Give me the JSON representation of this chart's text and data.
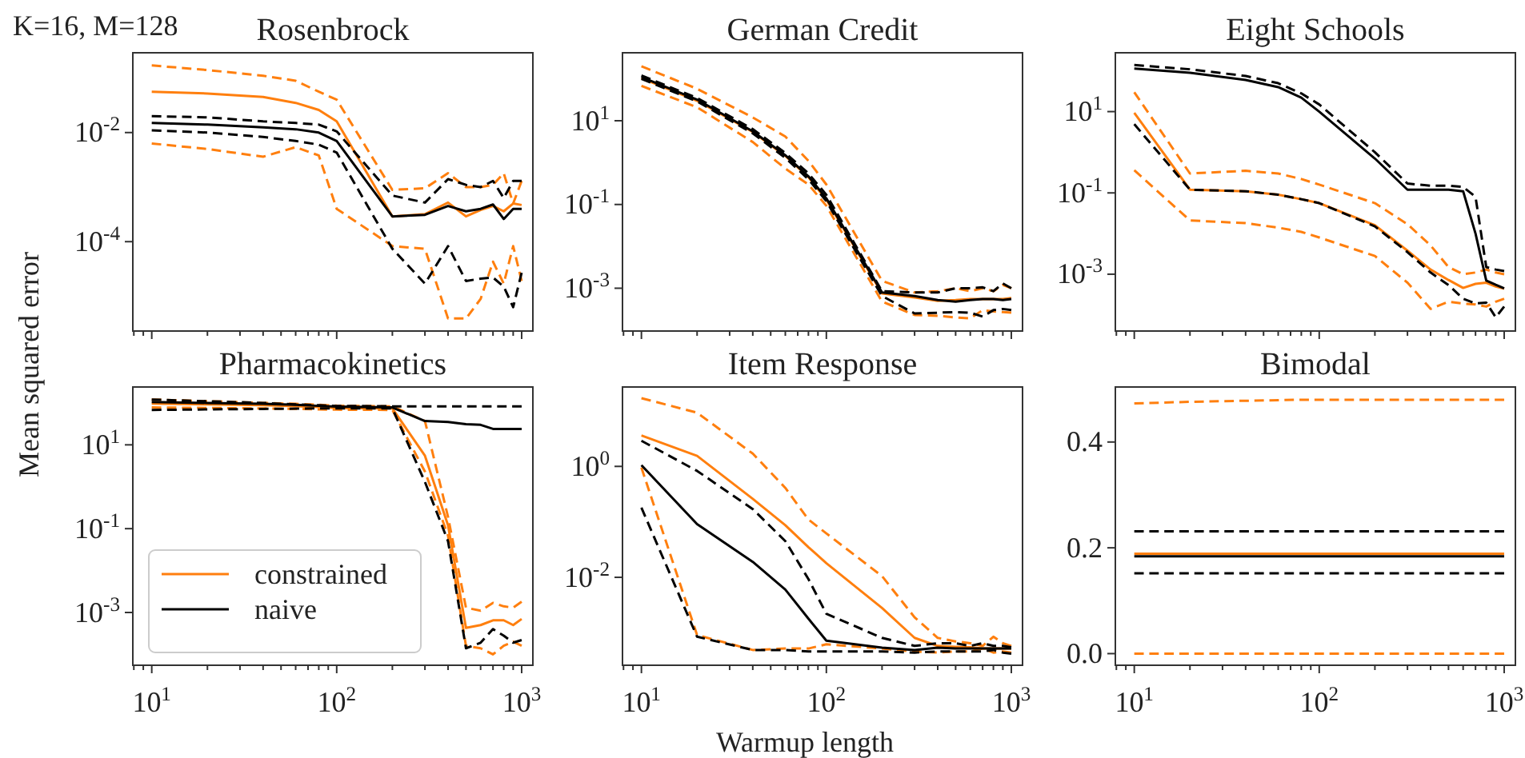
{
  "chart_data": [
    {
      "type": "line",
      "title": "Rosenbrock",
      "log": "xy",
      "tick_labels": "y",
      "ylabel": "Mean squared error",
      "annotations": [
        "K=16, M=128"
      ],
      "x": [
        10,
        20,
        40,
        60,
        80,
        100,
        200,
        300,
        400,
        500,
        600,
        700,
        800,
        900,
        1000
      ],
      "xlim": [
        7.9,
        1150
      ],
      "ylim": [
        2.3e-06,
        0.29
      ],
      "xticks": [
        {
          "value": 8,
          "label": null
        },
        {
          "value": 9,
          "label": null
        },
        {
          "value": 10,
          "label": null
        },
        {
          "value": 20,
          "label": null
        },
        {
          "value": 30,
          "label": null
        },
        {
          "value": 40,
          "label": null
        },
        {
          "value": 50,
          "label": null
        },
        {
          "value": 60,
          "label": null
        },
        {
          "value": 70,
          "label": null
        },
        {
          "value": 80,
          "label": null
        },
        {
          "value": 90,
          "label": null
        },
        {
          "value": 100,
          "label": null
        },
        {
          "value": 200,
          "label": null
        },
        {
          "value": 300,
          "label": null
        },
        {
          "value": 400,
          "label": null
        },
        {
          "value": 500,
          "label": null
        },
        {
          "value": 600,
          "label": null
        },
        {
          "value": 700,
          "label": null
        },
        {
          "value": 800,
          "label": null
        },
        {
          "value": 900,
          "label": null
        },
        {
          "value": 1000,
          "label": null
        }
      ],
      "yticks": [
        {
          "value": 0.01,
          "label": "10$^{-2}$"
        },
        {
          "value": 0.0001,
          "label": "10$^{-4}$"
        }
      ],
      "series": [
        {
          "color": "#ff7f0e",
          "line_style": "dashed",
          "values": [
            0.17,
            0.14,
            0.11,
            0.089,
            0.056,
            0.04,
            0.00089,
            0.00095,
            0.0018,
            0.001,
            0.001,
            0.0011,
            0.0018,
            0.0005,
            0.0013
          ]
        },
        {
          "color": "#ff7f0e",
          "line_style": "solid",
          "values": [
            0.056,
            0.052,
            0.045,
            0.035,
            0.026,
            0.016,
            0.00029,
            0.00032,
            0.00052,
            0.00029,
            0.00038,
            0.00045,
            0.00036,
            0.0005,
            0.00047
          ]
        },
        {
          "color": "#ff7f0e",
          "line_style": "dashed",
          "values": [
            0.0063,
            0.005,
            0.0036,
            0.0054,
            0.0038,
            0.0004,
            8.3e-05,
            7.4e-05,
            3.9e-06,
            3.9e-06,
            8.9e-06,
            4.3e-05,
            1.7e-05,
            8.3e-05,
            1.9e-05
          ]
        },
        {
          "color": "#000000",
          "line_style": "dashed",
          "values": [
            0.02,
            0.019,
            0.016,
            0.015,
            0.014,
            0.0105,
            0.0007,
            0.00052,
            0.0014,
            0.0011,
            0.001,
            0.0013,
            0.00063,
            0.0013,
            0.0013
          ]
        },
        {
          "color": "#000000",
          "line_style": "solid",
          "values": [
            0.015,
            0.014,
            0.0125,
            0.0115,
            0.01,
            0.007,
            0.00029,
            0.00031,
            0.00045,
            0.00036,
            0.0004,
            0.00048,
            0.00026,
            0.0004,
            0.0004
          ]
        },
        {
          "color": "#000000",
          "line_style": "dashed",
          "values": [
            0.011,
            0.01,
            0.0083,
            0.007,
            0.006,
            0.0043,
            7.4e-05,
            1.7e-05,
            8.3e-05,
            1.9e-05,
            2.1e-05,
            2.2e-05,
            1.5e-05,
            6.3e-06,
            2.7e-05
          ]
        }
      ]
    },
    {
      "type": "line",
      "title": "German Credit",
      "log": "xy",
      "tick_labels": "y",
      "x": [
        10,
        20,
        40,
        60,
        80,
        100,
        200,
        300,
        400,
        500,
        600,
        700,
        800,
        900,
        1000
      ],
      "xlim": [
        7.9,
        1150
      ],
      "ylim": [
        9.5e-05,
        420
      ],
      "xticks": [
        {
          "value": 8,
          "label": null
        },
        {
          "value": 9,
          "label": null
        },
        {
          "value": 10,
          "label": null
        },
        {
          "value": 20,
          "label": null
        },
        {
          "value": 30,
          "label": null
        },
        {
          "value": 40,
          "label": null
        },
        {
          "value": 50,
          "label": null
        },
        {
          "value": 60,
          "label": null
        },
        {
          "value": 70,
          "label": null
        },
        {
          "value": 80,
          "label": null
        },
        {
          "value": 90,
          "label": null
        },
        {
          "value": 100,
          "label": null
        },
        {
          "value": 200,
          "label": null
        },
        {
          "value": 300,
          "label": null
        },
        {
          "value": 400,
          "label": null
        },
        {
          "value": 500,
          "label": null
        },
        {
          "value": 600,
          "label": null
        },
        {
          "value": 700,
          "label": null
        },
        {
          "value": 800,
          "label": null
        },
        {
          "value": 900,
          "label": null
        },
        {
          "value": 1000,
          "label": null
        }
      ],
      "yticks": [
        {
          "value": 10,
          "label": "10$^{1}$"
        },
        {
          "value": 0.1,
          "label": "10$^{-1}$"
        },
        {
          "value": 0.001,
          "label": "10$^{-3}$"
        }
      ],
      "series": [
        {
          "color": "#ff7f0e",
          "line_style": "dashed",
          "values": [
            200,
            58,
            12,
            4.2,
            1.1,
            0.3,
            0.0015,
            0.00079,
            0.00085,
            0.001,
            0.00085,
            0.001,
            0.00085,
            0.0012,
            0.001
          ]
        },
        {
          "color": "#ff7f0e",
          "line_style": "solid",
          "values": [
            105,
            30,
            5.4,
            1.45,
            0.45,
            0.13,
            0.00075,
            0.0006,
            0.0005,
            0.00052,
            0.00055,
            0.00055,
            0.00055,
            0.00055,
            0.00058
          ]
        },
        {
          "color": "#ff7f0e",
          "line_style": "dashed",
          "values": [
            68,
            21,
            3.1,
            0.72,
            0.3,
            0.093,
            0.00048,
            0.00023,
            0.00022,
            0.0002,
            0.00019,
            0.0003,
            0.00028,
            0.00027,
            0.00026
          ]
        },
        {
          "color": "#000000",
          "line_style": "dashed",
          "values": [
            120,
            35,
            6.3,
            1.7,
            0.55,
            0.17,
            0.00085,
            0.00079,
            0.00079,
            0.001,
            0.001,
            0.00105,
            0.00085,
            0.0013,
            0.001
          ]
        },
        {
          "color": "#000000",
          "line_style": "solid",
          "values": [
            110,
            32,
            5.6,
            1.5,
            0.47,
            0.14,
            0.00079,
            0.00065,
            0.00052,
            0.00048,
            0.00052,
            0.00055,
            0.00055,
            0.00052,
            0.00055
          ]
        },
        {
          "color": "#000000",
          "line_style": "dashed",
          "values": [
            100,
            29,
            5,
            1.3,
            0.4,
            0.12,
            0.00065,
            0.00025,
            0.00026,
            0.00027,
            0.00026,
            0.00021,
            0.0003,
            0.00032,
            0.0003
          ]
        }
      ]
    },
    {
      "type": "line",
      "title": "Eight Schools",
      "log": "xy",
      "tick_labels": "y",
      "x": [
        10,
        20,
        40,
        60,
        80,
        100,
        200,
        300,
        400,
        500,
        600,
        700,
        800,
        900,
        1000
      ],
      "xlim": [
        7.9,
        1150
      ],
      "ylim": [
        4e-05,
        280
      ],
      "xticks": [
        {
          "value": 8,
          "label": null
        },
        {
          "value": 9,
          "label": null
        },
        {
          "value": 10,
          "label": null
        },
        {
          "value": 20,
          "label": null
        },
        {
          "value": 30,
          "label": null
        },
        {
          "value": 40,
          "label": null
        },
        {
          "value": 50,
          "label": null
        },
        {
          "value": 60,
          "label": null
        },
        {
          "value": 70,
          "label": null
        },
        {
          "value": 80,
          "label": null
        },
        {
          "value": 90,
          "label": null
        },
        {
          "value": 100,
          "label": null
        },
        {
          "value": 200,
          "label": null
        },
        {
          "value": 300,
          "label": null
        },
        {
          "value": 400,
          "label": null
        },
        {
          "value": 500,
          "label": null
        },
        {
          "value": 600,
          "label": null
        },
        {
          "value": 700,
          "label": null
        },
        {
          "value": 800,
          "label": null
        },
        {
          "value": 900,
          "label": null
        },
        {
          "value": 1000,
          "label": null
        }
      ],
      "yticks": [
        {
          "value": 10,
          "label": "10$^{1}$"
        },
        {
          "value": 0.1,
          "label": "10$^{-1}$"
        },
        {
          "value": 0.001,
          "label": "10$^{-3}$"
        }
      ],
      "series": [
        {
          "color": "#ff7f0e",
          "line_style": "dashed",
          "values": [
            30,
            0.3,
            0.35,
            0.3,
            0.22,
            0.16,
            0.056,
            0.017,
            0.0051,
            0.0015,
            0.001,
            0.0011,
            0.0013,
            0.0011,
            0.001
          ]
        },
        {
          "color": "#ff7f0e",
          "line_style": "solid",
          "values": [
            9.3,
            0.12,
            0.11,
            0.09,
            0.07,
            0.056,
            0.016,
            0.0038,
            0.0013,
            0.00072,
            0.00046,
            0.00058,
            0.00062,
            0.0005,
            0.00044
          ]
        },
        {
          "color": "#ff7f0e",
          "line_style": "dashed",
          "values": [
            0.36,
            0.021,
            0.018,
            0.014,
            0.011,
            0.008,
            0.0028,
            0.00062,
            0.00014,
            0.00021,
            0.00019,
            0.00018,
            0.00016,
            0.00021,
            0.00025
          ]
        },
        {
          "color": "#000000",
          "line_style": "dashed",
          "values": [
            140,
            110,
            75,
            50,
            28,
            15,
            1,
            0.17,
            0.15,
            0.15,
            0.14,
            0.08,
            0.0015,
            0.0013,
            0.0012
          ]
        },
        {
          "color": "#000000",
          "line_style": "solid",
          "values": [
            115,
            90,
            60,
            40,
            22,
            10,
            0.7,
            0.12,
            0.12,
            0.12,
            0.11,
            0.01,
            0.0007,
            0.00055,
            0.00045
          ]
        },
        {
          "color": "#000000",
          "line_style": "dashed",
          "values": [
            4.9,
            0.12,
            0.11,
            0.09,
            0.07,
            0.056,
            0.015,
            0.0035,
            0.0011,
            0.00054,
            0.00025,
            0.00019,
            0.0002,
            8.7e-05,
            0.00016
          ]
        }
      ]
    },
    {
      "type": "line",
      "title": "Pharmacokinetics",
      "log": "xy",
      "legend": "bottom left",
      "x": [
        10,
        20,
        40,
        60,
        80,
        100,
        200,
        300,
        400,
        500,
        600,
        700,
        800,
        900,
        1000
      ],
      "xlim": [
        7.9,
        1150
      ],
      "ylim": [
        5.5e-05,
        240
      ],
      "xticks": [
        {
          "value": 8,
          "label": null
        },
        {
          "value": 9,
          "label": null
        },
        {
          "value": 10,
          "label": "10$^{1}$"
        },
        {
          "value": 20,
          "label": null
        },
        {
          "value": 30,
          "label": null
        },
        {
          "value": 40,
          "label": null
        },
        {
          "value": 50,
          "label": null
        },
        {
          "value": 60,
          "label": null
        },
        {
          "value": 70,
          "label": null
        },
        {
          "value": 80,
          "label": null
        },
        {
          "value": 90,
          "label": null
        },
        {
          "value": 100,
          "label": "10$^{2}$"
        },
        {
          "value": 200,
          "label": null
        },
        {
          "value": 300,
          "label": null
        },
        {
          "value": 400,
          "label": null
        },
        {
          "value": 500,
          "label": null
        },
        {
          "value": 600,
          "label": null
        },
        {
          "value": 700,
          "label": null
        },
        {
          "value": 800,
          "label": null
        },
        {
          "value": 900,
          "label": null
        },
        {
          "value": 1000,
          "label": "10$^{3}$"
        }
      ],
      "yticks": [
        {
          "value": 10,
          "label": "10$^{1}$"
        },
        {
          "value": 0.1,
          "label": "10$^{-1}$"
        },
        {
          "value": 0.001,
          "label": "10$^{-3}$"
        }
      ],
      "series": [
        {
          "color": "#ff7f0e",
          "line_style": "dashed",
          "values": [
            120,
            110,
            100,
            95,
            90,
            86,
            83,
            37,
            0.19,
            0.0013,
            0.0011,
            0.0017,
            0.0014,
            0.0013,
            0.0018
          ]
        },
        {
          "name": "constrained",
          "color": "#ff7f0e",
          "line_style": "solid",
          "values": [
            96,
            92,
            88,
            84,
            80,
            76,
            74,
            5.5,
            0.12,
            0.00043,
            0.0005,
            0.00065,
            0.00065,
            0.0005,
            0.0007
          ]
        },
        {
          "color": "#ff7f0e",
          "line_style": "dashed",
          "values": [
            78,
            76,
            74,
            72,
            70,
            69,
            68,
            2.3,
            0.068,
            0.00016,
            0.00014,
            0.0001,
            0.00016,
            0.0002,
            0.00016
          ]
        },
        {
          "color": "#000000",
          "line_style": "dashed",
          "values": [
            120,
            110,
            100,
            92,
            88,
            85,
            83,
            83,
            83,
            83,
            83,
            83,
            83,
            83,
            83
          ]
        },
        {
          "name": "naive",
          "color": "#000000",
          "line_style": "solid",
          "values": [
            105,
            100,
            95,
            90,
            85,
            82,
            78,
            37,
            35,
            31,
            30,
            24,
            24,
            24,
            24
          ]
        },
        {
          "color": "#000000",
          "line_style": "dashed",
          "values": [
            68,
            70,
            72,
            73,
            74,
            74,
            74,
            1.3,
            0.05,
            0.00014,
            0.00019,
            0.0004,
            0.00028,
            0.00019,
            0.00022
          ]
        }
      ]
    },
    {
      "type": "line",
      "title": "Item Response",
      "log": "xy",
      "xlabel": "Warmup length",
      "x": [
        10,
        20,
        40,
        60,
        80,
        100,
        200,
        300,
        400,
        500,
        600,
        700,
        800,
        900,
        1000
      ],
      "xlim": [
        7.9,
        1150
      ],
      "ylim": [
        0.00026,
        27
      ],
      "xticks": [
        {
          "value": 8,
          "label": null
        },
        {
          "value": 9,
          "label": null
        },
        {
          "value": 10,
          "label": "10$^{1}$"
        },
        {
          "value": 20,
          "label": null
        },
        {
          "value": 30,
          "label": null
        },
        {
          "value": 40,
          "label": null
        },
        {
          "value": 50,
          "label": null
        },
        {
          "value": 60,
          "label": null
        },
        {
          "value": 70,
          "label": null
        },
        {
          "value": 80,
          "label": null
        },
        {
          "value": 90,
          "label": null
        },
        {
          "value": 100,
          "label": "10$^{2}$"
        },
        {
          "value": 200,
          "label": null
        },
        {
          "value": 300,
          "label": null
        },
        {
          "value": 400,
          "label": null
        },
        {
          "value": 500,
          "label": null
        },
        {
          "value": 600,
          "label": null
        },
        {
          "value": 700,
          "label": null
        },
        {
          "value": 800,
          "label": null
        },
        {
          "value": 900,
          "label": null
        },
        {
          "value": 1000,
          "label": "10$^{3}$"
        }
      ],
      "yticks": [
        {
          "value": 1,
          "label": "10$^{0}$"
        },
        {
          "value": 0.01,
          "label": "10$^{-2}$"
        }
      ],
      "series": [
        {
          "color": "#ff7f0e",
          "line_style": "dashed",
          "values": [
            17,
            9.3,
            1.7,
            0.41,
            0.11,
            0.062,
            0.0105,
            0.0019,
            0.00081,
            0.0007,
            0.00065,
            0.00058,
            0.00085,
            0.00065,
            0.00058
          ]
        },
        {
          "color": "#ff7f0e",
          "line_style": "solid",
          "values": [
            3.6,
            1.55,
            0.26,
            0.087,
            0.035,
            0.018,
            0.0028,
            0.00081,
            0.00058,
            0.00056,
            0.00055,
            0.00052,
            0.00052,
            0.00052,
            0.00052
          ]
        },
        {
          "color": "#ff7f0e",
          "line_style": "dashed",
          "values": [
            0.95,
            0.00091,
            0.00049,
            0.00052,
            0.00052,
            0.00062,
            0.00052,
            0.00046,
            0.00044,
            0.00046,
            0.00046,
            0.00052,
            0.00044,
            0.00046,
            0.00044
          ]
        },
        {
          "color": "#000000",
          "line_style": "dashed",
          "values": [
            2.9,
            0.83,
            0.17,
            0.045,
            0.0093,
            0.0022,
            0.00081,
            0.00058,
            0.00065,
            0.00065,
            0.00058,
            0.00065,
            0.00058,
            0.00058,
            0.00055
          ]
        },
        {
          "color": "#000000",
          "line_style": "solid",
          "values": [
            1.05,
            0.091,
            0.019,
            0.006,
            0.0018,
            0.00072,
            0.00054,
            0.00049,
            0.00054,
            0.00052,
            0.00052,
            0.00052,
            0.00052,
            0.00052,
            0.00052
          ]
        },
        {
          "color": "#000000",
          "line_style": "dashed",
          "values": [
            0.18,
            0.00085,
            0.00049,
            0.00049,
            0.00046,
            0.00046,
            0.00046,
            0.00044,
            0.00046,
            0.00046,
            0.00046,
            0.00046,
            0.00049,
            0.00044,
            0.00042
          ]
        }
      ]
    },
    {
      "type": "line",
      "title": "Bimodal",
      "log": "x",
      "x": [
        10,
        20,
        40,
        60,
        80,
        100,
        200,
        300,
        400,
        500,
        600,
        700,
        800,
        900,
        1000
      ],
      "xlim": [
        7.9,
        1150
      ],
      "ylim": [
        -0.022,
        0.504
      ],
      "xticks": [
        {
          "value": 8,
          "label": null
        },
        {
          "value": 9,
          "label": null
        },
        {
          "value": 10,
          "label": "10$^{1}$"
        },
        {
          "value": 20,
          "label": null
        },
        {
          "value": 30,
          "label": null
        },
        {
          "value": 40,
          "label": null
        },
        {
          "value": 50,
          "label": null
        },
        {
          "value": 60,
          "label": null
        },
        {
          "value": 70,
          "label": null
        },
        {
          "value": 80,
          "label": null
        },
        {
          "value": 90,
          "label": null
        },
        {
          "value": 100,
          "label": "10$^{2}$"
        },
        {
          "value": 200,
          "label": null
        },
        {
          "value": 300,
          "label": null
        },
        {
          "value": 400,
          "label": null
        },
        {
          "value": 500,
          "label": null
        },
        {
          "value": 600,
          "label": null
        },
        {
          "value": 700,
          "label": null
        },
        {
          "value": 800,
          "label": null
        },
        {
          "value": 900,
          "label": null
        },
        {
          "value": 1000,
          "label": "10$^{3}$"
        }
      ],
      "yticks": [
        {
          "value": 0,
          "label": "0.0"
        },
        {
          "value": 0.2,
          "label": "0.2"
        },
        {
          "value": 0.4,
          "label": "0.4"
        }
      ],
      "series": [
        {
          "color": "#ff7f0e",
          "line_style": "dashed",
          "values": [
            0.473,
            0.476,
            0.478,
            0.479,
            0.48,
            0.48,
            0.48,
            0.48,
            0.48,
            0.48,
            0.48,
            0.48,
            0.48,
            0.48,
            0.48
          ]
        },
        {
          "color": "#ff7f0e",
          "line_style": "solid",
          "values": [
            0.189,
            0.189,
            0.189,
            0.189,
            0.189,
            0.189,
            0.189,
            0.189,
            0.189,
            0.189,
            0.189,
            0.189,
            0.189,
            0.189,
            0.189
          ]
        },
        {
          "color": "#ff7f0e",
          "line_style": "dashed",
          "values": [
            0,
            0,
            0,
            0,
            0,
            0,
            0,
            0,
            0,
            0,
            0,
            0,
            0,
            0,
            0
          ]
        },
        {
          "color": "#000000",
          "line_style": "dashed",
          "values": [
            0.231,
            0.231,
            0.231,
            0.231,
            0.231,
            0.231,
            0.231,
            0.231,
            0.231,
            0.231,
            0.231,
            0.231,
            0.231,
            0.231,
            0.231
          ]
        },
        {
          "color": "#000000",
          "line_style": "solid",
          "values": [
            0.184,
            0.184,
            0.184,
            0.184,
            0.184,
            0.184,
            0.184,
            0.184,
            0.184,
            0.184,
            0.184,
            0.184,
            0.184,
            0.184,
            0.184
          ]
        },
        {
          "color": "#000000",
          "line_style": "dashed",
          "values": [
            0.152,
            0.152,
            0.152,
            0.152,
            0.152,
            0.152,
            0.152,
            0.152,
            0.152,
            0.152,
            0.152,
            0.152,
            0.152,
            0.152,
            0.152
          ]
        }
      ]
    }
  ]
}
